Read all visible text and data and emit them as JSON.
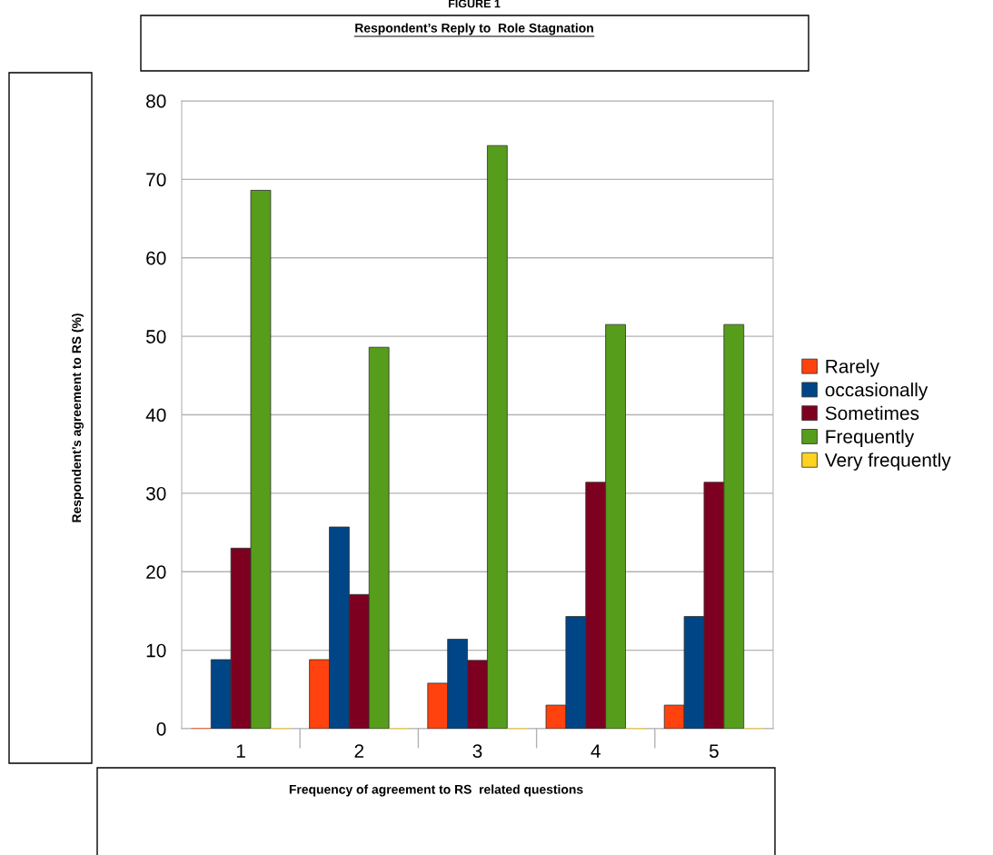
{
  "chart_data": {
    "type": "bar",
    "title": "Respondent’s Reply to  Role Stagnation",
    "xlabel": "Frequency of agreement to RS  related questions",
    "ylabel": "Respondent’s agreement to RS (%)",
    "annotations": [
      "FIGURE 1"
    ],
    "categories": [
      "1",
      "2",
      "3",
      "4",
      "5"
    ],
    "series": [
      {
        "name": "Rarely",
        "color": "#ff420e",
        "values": [
          0,
          8.8,
          5.8,
          3.0,
          3.0
        ]
      },
      {
        "name": "occasionally",
        "color": "#004586",
        "values": [
          8.8,
          25.7,
          11.4,
          14.3,
          14.3
        ]
      },
      {
        "name": "Sometimes",
        "color": "#7e0021",
        "values": [
          23.0,
          17.1,
          8.7,
          31.4,
          31.4
        ]
      },
      {
        "name": "Frequently",
        "color": "#579d1c",
        "values": [
          68.6,
          48.6,
          74.3,
          51.5,
          51.5
        ]
      },
      {
        "name": "Very frequently",
        "color": "#ffd320",
        "values": [
          0,
          0,
          0,
          0,
          0
        ]
      }
    ],
    "ylim": [
      0,
      80
    ],
    "yticks": [
      0,
      10,
      20,
      30,
      40,
      50,
      60,
      70,
      80
    ],
    "grid": "y",
    "legend": "right"
  }
}
